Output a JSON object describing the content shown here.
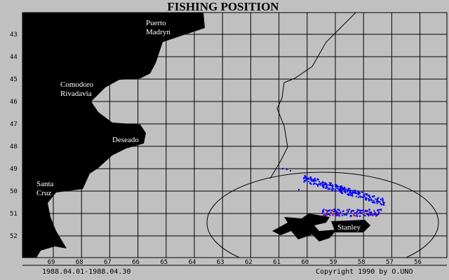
{
  "title": "FISHING POSITION",
  "latitudes": [
    43,
    44,
    45,
    46,
    47,
    48,
    49,
    50,
    51,
    52
  ],
  "longitudes": [
    69,
    68,
    67,
    66,
    65,
    64,
    63,
    62,
    61,
    60,
    59,
    58,
    57,
    56
  ],
  "places": [
    {
      "label": "Puerto\nMadryn"
    },
    {
      "label": "Comodoro\nRivadavia"
    },
    {
      "label": "Deseado"
    },
    {
      "label": "Santa\nCruz"
    },
    {
      "label": "Stanley"
    }
  ],
  "period": "1988.04.01-1988.04.30",
  "copyright": "Copyright 1990 by O.UNO"
}
